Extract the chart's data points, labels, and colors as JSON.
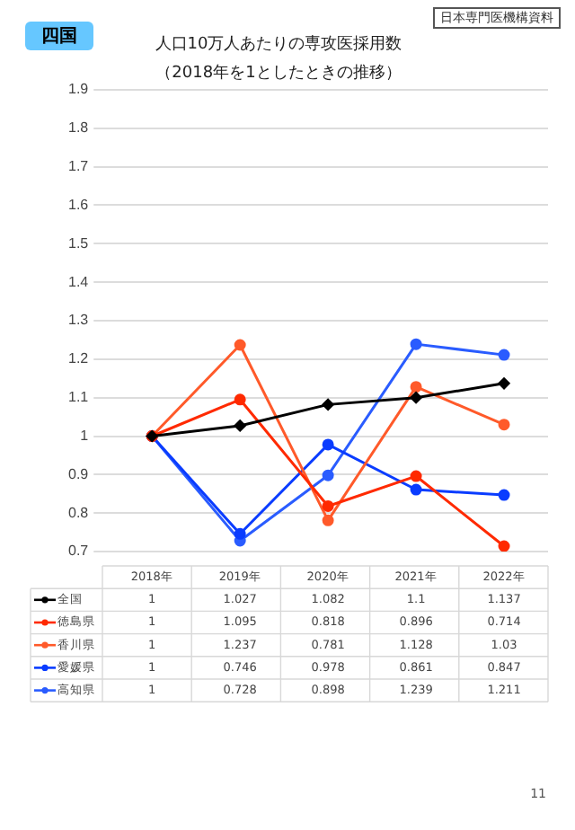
{
  "chart_data": {
    "type": "line",
    "title": "人口10万人あたりの専攻医採用数",
    "subtitle": "（2018年を1としたときの推移）",
    "annotations": [
      "四国",
      "日本専門医機構資料",
      "11"
    ],
    "categories": [
      "2018年",
      "2019年",
      "2020年",
      "2021年",
      "2022年"
    ],
    "series": [
      {
        "name": "全国",
        "color": "#000000",
        "marker": "diamond",
        "values": [
          1,
          1.027,
          1.082,
          1.1,
          1.137
        ]
      },
      {
        "name": "徳島県",
        "color": "#ff2a00",
        "marker": "circle",
        "values": [
          1,
          1.095,
          0.818,
          0.896,
          0.714
        ]
      },
      {
        "name": "香川県",
        "color": "#ff5a2a",
        "marker": "circle",
        "values": [
          1,
          1.237,
          0.781,
          1.128,
          1.03
        ]
      },
      {
        "name": "愛媛県",
        "color": "#0a3cff",
        "marker": "circle",
        "values": [
          1,
          0.746,
          0.978,
          0.861,
          0.847
        ]
      },
      {
        "name": "高知県",
        "color": "#2a5cff",
        "marker": "circle",
        "values": [
          1,
          0.728,
          0.898,
          1.239,
          1.211
        ]
      }
    ],
    "ylim": [
      0.7,
      1.9
    ],
    "yticks": [
      0.7,
      0.8,
      0.9,
      1,
      1.1,
      1.2,
      1.3,
      1.4,
      1.5,
      1.6,
      1.7,
      1.8,
      1.9
    ],
    "grid": "y",
    "legend": "bottom",
    "data_labels": true,
    "line_style": "solid"
  }
}
